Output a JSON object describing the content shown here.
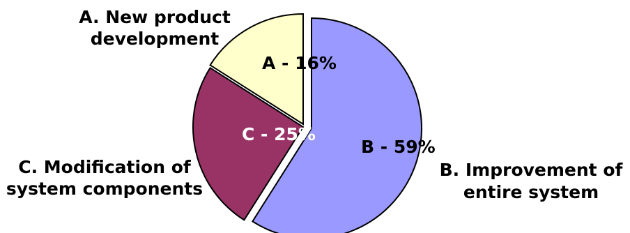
{
  "chart_data": {
    "type": "pie",
    "title": "",
    "slices": [
      {
        "key": "A",
        "slice_label": "A - 16%",
        "label_lines": [
          "A. New product",
          "development"
        ],
        "value": 16,
        "color": "#FFFFCC"
      },
      {
        "key": "B",
        "slice_label": "B - 59%",
        "label_lines": [
          "B. Improvement of",
          "entire system"
        ],
        "value": 59,
        "color": "#9999FF"
      },
      {
        "key": "C",
        "slice_label": "C - 25%",
        "label_lines": [
          "C. Modification of",
          "system components"
        ],
        "value": 25,
        "color": "#993366",
        "slice_label_color": "#FFFFFF"
      }
    ],
    "legend": "none"
  }
}
